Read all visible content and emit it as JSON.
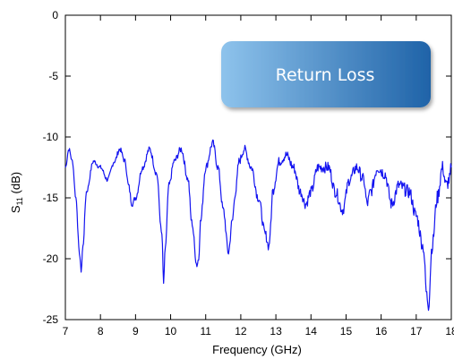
{
  "chart_data": {
    "type": "line",
    "title": "",
    "xlabel": "Frequency (GHz)",
    "ylabel": "S11 (dB)",
    "ylabel_parts": {
      "main": "S",
      "sub": "11",
      "rest": " (dB)"
    },
    "xlim": [
      7,
      18
    ],
    "ylim": [
      -25,
      0
    ],
    "xticks": [
      7,
      8,
      9,
      10,
      11,
      12,
      13,
      14,
      15,
      16,
      17,
      18
    ],
    "yticks": [
      0,
      -5,
      -10,
      -15,
      -20,
      -25
    ],
    "grid": false,
    "legend": {
      "label": "Return Loss",
      "placement": "top-right"
    },
    "colors": {
      "series": "#1414f0",
      "legend_start": "#8ec3ec",
      "legend_end": "#1f63a8"
    },
    "series": [
      {
        "color": "#1414f0",
        "x": [
          7.0,
          7.1,
          7.2,
          7.3,
          7.4,
          7.45,
          7.5,
          7.6,
          7.8,
          8.0,
          8.2,
          8.4,
          8.55,
          8.7,
          8.8,
          8.9,
          9.0,
          9.2,
          9.4,
          9.6,
          9.75,
          9.8,
          9.85,
          9.95,
          10.1,
          10.3,
          10.5,
          10.6,
          10.75,
          10.8,
          10.85,
          11.0,
          11.2,
          11.35,
          11.5,
          11.65,
          11.75,
          11.85,
          11.95,
          12.1,
          12.3,
          12.5,
          12.7,
          12.8,
          12.85,
          12.9,
          13.1,
          13.3,
          13.5,
          13.7,
          13.85,
          14.0,
          14.2,
          14.5,
          14.7,
          14.9,
          15.1,
          15.3,
          15.5,
          15.6,
          15.7,
          15.9,
          16.1,
          16.3,
          16.5,
          16.8,
          17.0,
          17.2,
          17.3,
          17.35,
          17.45,
          17.6,
          17.75,
          17.85,
          17.95,
          18.0
        ],
        "values": [
          -12.5,
          -11.0,
          -12.0,
          -15.0,
          -19.5,
          -21.0,
          -19.0,
          -14.5,
          -12.0,
          -12.5,
          -13.5,
          -12.0,
          -11.0,
          -12.0,
          -14.0,
          -15.5,
          -15.0,
          -12.5,
          -11.0,
          -13.0,
          -18.0,
          -22.0,
          -19.0,
          -14.0,
          -12.0,
          -11.0,
          -13.5,
          -17.0,
          -20.5,
          -20.0,
          -17.0,
          -12.5,
          -10.5,
          -12.5,
          -16.0,
          -19.5,
          -17.0,
          -14.5,
          -12.0,
          -11.0,
          -12.5,
          -15.0,
          -18.0,
          -19.0,
          -17.5,
          -14.5,
          -12.0,
          -11.5,
          -12.5,
          -14.5,
          -15.5,
          -14.5,
          -12.5,
          -12.5,
          -14.5,
          -16.0,
          -13.5,
          -12.5,
          -13.5,
          -15.5,
          -14.5,
          -12.5,
          -13.0,
          -15.5,
          -14.0,
          -14.5,
          -16.5,
          -19.0,
          -23.0,
          -23.8,
          -19.0,
          -15.0,
          -12.5,
          -14.0,
          -13.5,
          -12.5
        ]
      }
    ]
  }
}
